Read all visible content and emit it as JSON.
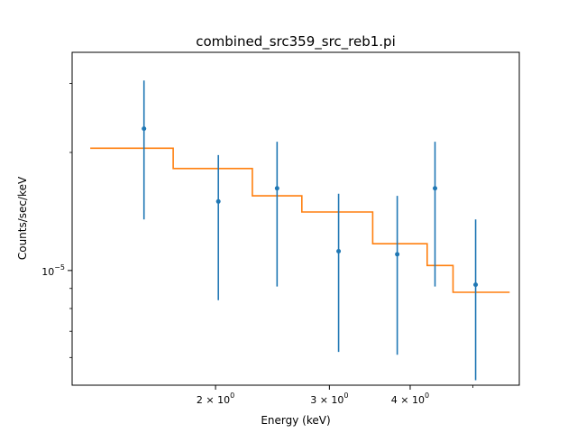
{
  "chart_data": {
    "type": "scatter",
    "title": "combined_src359_src_reb1.pi",
    "xlabel": "Energy (keV)",
    "ylabel": "Counts/sec/keV",
    "x_scale": "log",
    "y_scale": "log",
    "xlim": [
      1.2,
      5.9
    ],
    "ylim": [
      5.1e-06,
      3.6e-05
    ],
    "x_ticks": [
      {
        "value": 2,
        "label": "2 × 10^0"
      },
      {
        "value": 3,
        "label": "3 × 10^0"
      },
      {
        "value": 4,
        "label": "4 × 10^0"
      }
    ],
    "x_minor_ticks": [
      5
    ],
    "y_ticks": [
      {
        "value": 1e-05,
        "label": "10^−5"
      }
    ],
    "grid": false,
    "series": [
      {
        "kind": "errorbar",
        "color": "#1f77b4",
        "points": [
          {
            "x": 1.55,
            "y": 2.3e-05,
            "ylo": 1.35e-05,
            "yhi": 3.05e-05
          },
          {
            "x": 2.02,
            "y": 1.5e-05,
            "ylo": 8.4e-06,
            "yhi": 1.97e-05
          },
          {
            "x": 2.49,
            "y": 1.62e-05,
            "ylo": 9.1e-06,
            "yhi": 2.13e-05
          },
          {
            "x": 3.1,
            "y": 1.12e-05,
            "ylo": 6.2e-06,
            "yhi": 1.57e-05
          },
          {
            "x": 3.82,
            "y": 1.1e-05,
            "ylo": 6.1e-06,
            "yhi": 1.55e-05
          },
          {
            "x": 4.37,
            "y": 1.62e-05,
            "ylo": 9.1e-06,
            "yhi": 2.13e-05
          },
          {
            "x": 5.05,
            "y": 9.2e-06,
            "ylo": 5.25e-06,
            "yhi": 1.35e-05
          }
        ]
      },
      {
        "kind": "step",
        "color": "#ff7f0e",
        "steps": [
          {
            "x0": 1.28,
            "x1": 1.72,
            "y": 2.05e-05
          },
          {
            "x0": 1.72,
            "x1": 2.28,
            "y": 1.82e-05
          },
          {
            "x0": 2.28,
            "x1": 2.72,
            "y": 1.55e-05
          },
          {
            "x0": 2.72,
            "x1": 3.5,
            "y": 1.41e-05
          },
          {
            "x0": 3.5,
            "x1": 4.25,
            "y": 1.17e-05
          },
          {
            "x0": 4.25,
            "x1": 4.66,
            "y": 1.03e-05
          },
          {
            "x0": 4.66,
            "x1": 5.7,
            "y": 8.8e-06
          }
        ]
      }
    ]
  }
}
